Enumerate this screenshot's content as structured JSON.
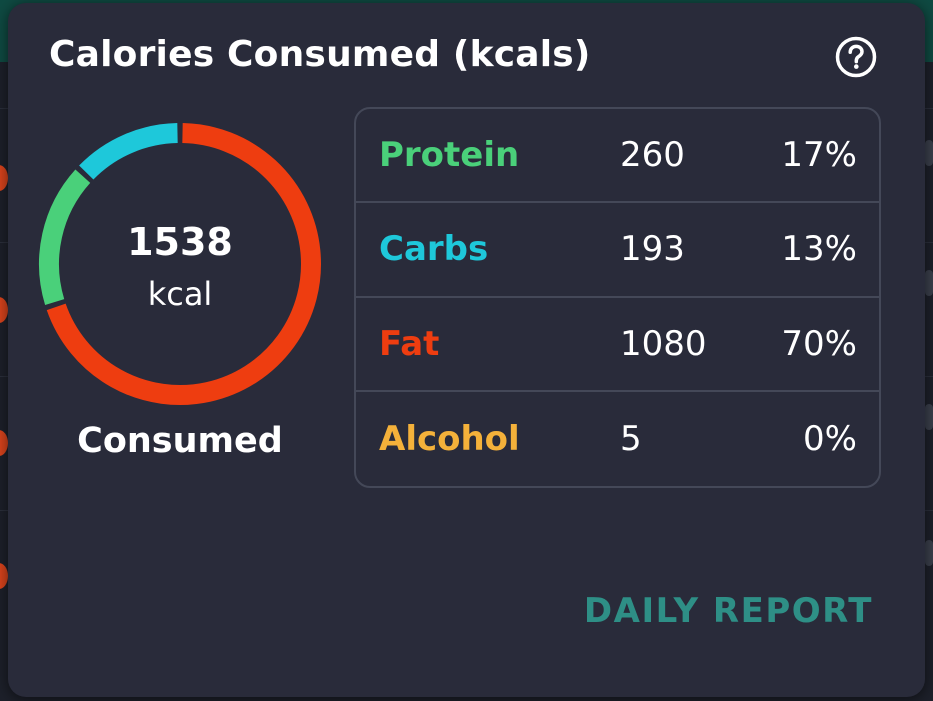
{
  "card": {
    "title": "Calories Consumed (kcals)",
    "help_icon": "question-circle-icon"
  },
  "summary": {
    "total": "1538",
    "unit": "kcal",
    "caption": "Consumed"
  },
  "macros": [
    {
      "name": "Protein",
      "kcal": "260",
      "percent": "17%",
      "color": "#4ad07a",
      "share": 0.17
    },
    {
      "name": "Carbs",
      "kcal": "193",
      "percent": "13%",
      "color": "#1ec8da",
      "share": 0.13
    },
    {
      "name": "Fat",
      "kcal": "1080",
      "percent": "70%",
      "color": "#ee3d10",
      "share": 0.7
    },
    {
      "name": "Alcohol",
      "kcal": "5",
      "percent": "0%",
      "color": "#f4b13a",
      "share": 0.0
    }
  ],
  "actions": {
    "daily_report": "DAILY REPORT"
  },
  "colors": {
    "card_background": "#292b3a",
    "divider": "#444858",
    "accent_teal": "#2e8f86",
    "text": "#ffffff"
  }
}
